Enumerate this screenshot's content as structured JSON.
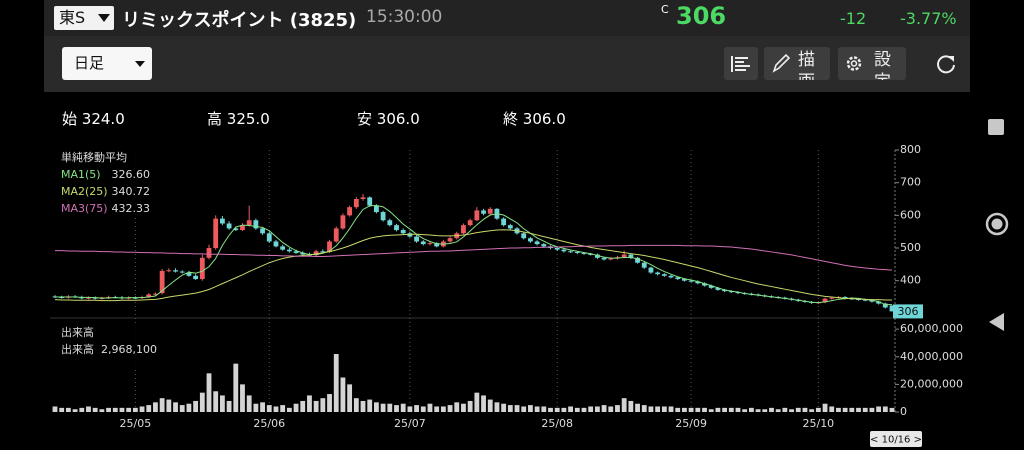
{
  "header": {
    "market": "東S",
    "name": "リミックスポイント (3825)",
    "time": "15:30:00",
    "price_flag": "C",
    "price": 306,
    "change": -12,
    "change_pct": "-3.77%"
  },
  "toolbar": {
    "period": "日足",
    "draw": "描画",
    "settings": "設定"
  },
  "ohlc": [
    {
      "label": "始",
      "value": "324.0"
    },
    {
      "label": "高",
      "value": "325.0"
    },
    {
      "label": "安",
      "value": "306.0"
    },
    {
      "label": "終",
      "value": "306.0"
    }
  ],
  "chart_data": {
    "type": "candlestick",
    "categories": [
      null,
      null,
      null,
      null,
      null,
      null,
      null,
      null,
      null,
      null,
      null,
      null,
      "25/05",
      null,
      null,
      null,
      null,
      null,
      null,
      null,
      null,
      null,
      null,
      null,
      null,
      null,
      null,
      null,
      null,
      null,
      null,
      null,
      "25/06",
      null,
      null,
      null,
      null,
      null,
      null,
      null,
      null,
      null,
      null,
      null,
      null,
      null,
      null,
      null,
      null,
      null,
      null,
      null,
      null,
      "25/07",
      null,
      null,
      null,
      null,
      null,
      null,
      null,
      null,
      null,
      null,
      null,
      null,
      null,
      null,
      null,
      null,
      null,
      null,
      null,
      null,
      null,
      "25/08",
      null,
      null,
      null,
      null,
      null,
      null,
      null,
      null,
      null,
      null,
      null,
      null,
      null,
      null,
      null,
      null,
      null,
      null,
      null,
      "25/09",
      null,
      null,
      null,
      null,
      null,
      null,
      null,
      null,
      null,
      null,
      null,
      null,
      null,
      null,
      null,
      null,
      null,
      null,
      "25/10",
      null,
      null,
      null,
      null,
      null,
      null,
      null,
      null,
      null,
      null,
      null
    ],
    "open": [
      352,
      350,
      348,
      352,
      350,
      346,
      348,
      345,
      347,
      350,
      349,
      346,
      348,
      347,
      350,
      358,
      362,
      430,
      432,
      428,
      425,
      415,
      405,
      470,
      500,
      590,
      575,
      560,
      555,
      570,
      585,
      560,
      545,
      520,
      505,
      495,
      490,
      485,
      480,
      478,
      490,
      488,
      520,
      560,
      600,
      625,
      650,
      655,
      630,
      610,
      585,
      570,
      555,
      545,
      535,
      520,
      512,
      515,
      505,
      520,
      530,
      545,
      570,
      585,
      615,
      605,
      620,
      590,
      570,
      560,
      545,
      530,
      520,
      512,
      505,
      500,
      495,
      490,
      488,
      485,
      482,
      480,
      470,
      465,
      468,
      472,
      480,
      470,
      455,
      440,
      425,
      420,
      415,
      410,
      405,
      400,
      398,
      392,
      385,
      378,
      372,
      368,
      365,
      362,
      360,
      358,
      355,
      352,
      350,
      348,
      345,
      342,
      338,
      335,
      332,
      334,
      345,
      348,
      350,
      346,
      344,
      342,
      340,
      336,
      330,
      324
    ],
    "high": [
      356,
      354,
      356,
      356,
      354,
      352,
      352,
      351,
      354,
      354,
      353,
      352,
      352,
      354,
      362,
      364,
      436,
      438,
      438,
      432,
      430,
      420,
      480,
      510,
      600,
      598,
      582,
      566,
      576,
      630,
      590,
      565,
      550,
      525,
      510,
      500,
      495,
      490,
      486,
      495,
      496,
      525,
      566,
      606,
      630,
      656,
      665,
      658,
      634,
      614,
      590,
      574,
      560,
      550,
      540,
      524,
      520,
      518,
      525,
      535,
      550,
      575,
      590,
      625,
      620,
      625,
      622,
      594,
      574,
      564,
      548,
      534,
      524,
      515,
      508,
      503,
      498,
      493,
      491,
      488,
      485,
      483,
      473,
      471,
      476,
      492,
      483,
      473,
      458,
      443,
      428,
      423,
      418,
      413,
      408,
      403,
      401,
      395,
      388,
      381,
      375,
      371,
      368,
      365,
      363,
      361,
      358,
      355,
      353,
      351,
      348,
      345,
      341,
      338,
      337,
      348,
      351,
      353,
      353,
      349,
      347,
      345,
      343,
      339,
      333,
      325
    ],
    "low": [
      347,
      345,
      345,
      347,
      343,
      343,
      342,
      342,
      344,
      346,
      343,
      343,
      344,
      344,
      347,
      355,
      358,
      426,
      425,
      422,
      412,
      402,
      400,
      465,
      495,
      570,
      556,
      552,
      552,
      566,
      556,
      540,
      516,
      502,
      492,
      486,
      482,
      476,
      474,
      475,
      484,
      485,
      516,
      556,
      596,
      620,
      645,
      626,
      606,
      581,
      566,
      551,
      542,
      532,
      516,
      508,
      508,
      502,
      502,
      516,
      526,
      542,
      566,
      582,
      600,
      602,
      586,
      566,
      556,
      541,
      526,
      516,
      508,
      501,
      496,
      491,
      486,
      485,
      481,
      479,
      477,
      466,
      462,
      462,
      465,
      469,
      466,
      452,
      436,
      421,
      416,
      412,
      407,
      402,
      397,
      395,
      389,
      382,
      375,
      369,
      365,
      362,
      359,
      357,
      355,
      352,
      349,
      347,
      345,
      342,
      339,
      335,
      332,
      329,
      329,
      331,
      342,
      345,
      343,
      341,
      339,
      337,
      333,
      327,
      315,
      306
    ],
    "close": [
      350,
      348,
      352,
      350,
      346,
      348,
      345,
      347,
      350,
      349,
      346,
      348,
      347,
      350,
      358,
      360,
      430,
      432,
      428,
      425,
      415,
      405,
      470,
      500,
      590,
      575,
      560,
      555,
      570,
      585,
      560,
      545,
      520,
      505,
      495,
      490,
      485,
      480,
      478,
      490,
      488,
      520,
      560,
      600,
      625,
      650,
      655,
      630,
      610,
      585,
      570,
      555,
      545,
      535,
      520,
      512,
      515,
      505,
      520,
      530,
      545,
      570,
      585,
      615,
      605,
      620,
      590,
      570,
      560,
      545,
      530,
      520,
      512,
      505,
      500,
      495,
      490,
      488,
      485,
      482,
      480,
      470,
      465,
      468,
      472,
      480,
      470,
      455,
      440,
      425,
      420,
      415,
      410,
      405,
      400,
      398,
      392,
      385,
      378,
      372,
      368,
      365,
      362,
      360,
      358,
      355,
      352,
      350,
      348,
      345,
      342,
      338,
      335,
      332,
      334,
      345,
      348,
      350,
      346,
      344,
      342,
      340,
      336,
      330,
      318,
      306
    ],
    "up_color": "#ee5b5f",
    "down_color": "#6fd6d8",
    "ylim": [
      295,
      800
    ],
    "yticks": [
      400,
      500,
      600,
      700,
      800
    ],
    "legend_title": "単純移動平均",
    "series": [
      {
        "name": "MA1(5)",
        "color": "#86e486",
        "legend_value": "326.60",
        "values": [
          350,
          350,
          350,
          350,
          349,
          349,
          348,
          347,
          347,
          348,
          347,
          348,
          348,
          348,
          350,
          353,
          369,
          386,
          402,
          417,
          426,
          423,
          429,
          443,
          468,
          508,
          539,
          564,
          570,
          569,
          566,
          563,
          553,
          535,
          517,
          503,
          492,
          485,
          480,
          480,
          484,
          491,
          507,
          531,
          559,
          591,
          618,
          629,
          630,
          626,
          612,
          593,
          573,
          558,
          542,
          529,
          520,
          513,
          512,
          514,
          519,
          534,
          552,
          571,
          588,
          601,
          605,
          601,
          589,
          577,
          559,
          545,
          531,
          521,
          511,
          504,
          499,
          494,
          490,
          486,
          483,
          477,
          472,
          469,
          469,
          471,
          471,
          467,
          459,
          449,
          438,
          428,
          420,
          412,
          406,
          402,
          397,
          391,
          385,
          378,
          372,
          368,
          365,
          361,
          358,
          356,
          353,
          351,
          348,
          346,
          343,
          340,
          337,
          334,
          333,
          335,
          339,
          343,
          345,
          347,
          346,
          343,
          340,
          336,
          327,
          326.6
        ]
      },
      {
        "name": "MA2(25)",
        "color": "#c9d86a",
        "legend_value": "340.72",
        "values": [
          342,
          341,
          341,
          340,
          340,
          340,
          340,
          339,
          339,
          339,
          340,
          340,
          340,
          341,
          342,
          343,
          346,
          350,
          353,
          356,
          359,
          362,
          367,
          373,
          382,
          391,
          400,
          409,
          418,
          428,
          437,
          446,
          455,
          462,
          468,
          472,
          475,
          477,
          479,
          482,
          485,
          489,
          494,
          500,
          507,
          515,
          523,
          530,
          534,
          537,
          539,
          540,
          541,
          542,
          542,
          541,
          540,
          538,
          537,
          537,
          538,
          540,
          543,
          547,
          550,
          553,
          555,
          556,
          555,
          553,
          549,
          545,
          540,
          535,
          530,
          525,
          520,
          515,
          510,
          506,
          502,
          498,
          495,
          492,
          489,
          486,
          483,
          480,
          477,
          473,
          469,
          465,
          460,
          455,
          450,
          445,
          440,
          434,
          428,
          422,
          416,
          410,
          405,
          400,
          395,
          390,
          386,
          382,
          378,
          374,
          370,
          366,
          362,
          358,
          355,
          352,
          350,
          348,
          346,
          345,
          344,
          343,
          342,
          342,
          341,
          340.72
        ]
      },
      {
        "name": "MA3(75)",
        "color": "#d070b4",
        "legend_value": "432.33",
        "values": [
          492,
          492,
          491,
          491,
          490,
          490,
          490,
          489,
          489,
          488,
          488,
          487,
          487,
          486,
          486,
          485,
          485,
          484,
          484,
          483,
          483,
          482,
          482,
          481,
          481,
          481,
          480,
          480,
          479,
          479,
          478,
          478,
          477,
          477,
          476,
          476,
          475,
          475,
          475,
          474,
          474,
          475,
          476,
          477,
          478,
          479,
          480,
          481,
          482,
          483,
          484,
          485,
          486,
          487,
          488,
          489,
          490,
          490,
          491,
          491,
          492,
          493,
          494,
          495,
          496,
          497,
          498,
          499,
          500,
          500,
          501,
          501,
          502,
          502,
          503,
          503,
          504,
          504,
          505,
          505,
          506,
          506,
          506,
          507,
          507,
          507,
          508,
          508,
          508,
          508,
          508,
          508,
          508,
          508,
          507,
          507,
          507,
          506,
          506,
          505,
          504,
          503,
          501,
          499,
          497,
          494,
          491,
          488,
          485,
          482,
          479,
          475,
          471,
          467,
          463,
          459,
          455,
          451,
          447,
          444,
          441,
          439,
          437,
          435,
          434,
          432.33
        ]
      }
    ],
    "volume": {
      "title": "出来高",
      "name": "出来高",
      "color": "#d4d4d4",
      "last_label": "2,968,100",
      "ylim": [
        0,
        63000000
      ],
      "yticks": [
        0,
        {
          "value": 20000000,
          "label": "20,000,000"
        },
        {
          "value": 40000000,
          "label": "40,000,000"
        },
        {
          "value": 60000000,
          "label": "60,000,000"
        }
      ],
      "values": [
        4000000.0,
        3000000.0,
        3000000.0,
        2000000.0,
        3000000.0,
        4000000.0,
        3000000.0,
        2000000.0,
        3000000.0,
        3000000.0,
        3000000.0,
        3000000.0,
        3000000.0,
        4000000.0,
        5000000.0,
        7000000.0,
        10000000.0,
        9000000.0,
        7000000.0,
        5000000.0,
        6000000.0,
        8000000.0,
        14000000.0,
        28000000.0,
        15000000.0,
        12000000.0,
        8000000.0,
        35000000.0,
        20000000.0,
        12000000.0,
        6000000.0,
        7000000.0,
        5000000.0,
        4000000.0,
        5000000.0,
        3000000.0,
        6000000.0,
        8000000.0,
        12000000.0,
        8000000.0,
        10000000.0,
        13000000.0,
        42000000.0,
        25000000.0,
        20000000.0,
        10000000.0,
        8000000.0,
        9000000.0,
        7000000.0,
        6000000.0,
        6000000.0,
        5000000.0,
        6000000.0,
        4000000.0,
        5000000.0,
        4000000.0,
        6000000.0,
        4000000.0,
        4000000.0,
        5000000.0,
        7000000.0,
        6000000.0,
        8000000.0,
        14000000.0,
        12000000.0,
        9000000.0,
        7000000.0,
        6000000.0,
        5000000.0,
        5000000.0,
        4000000.0,
        5000000.0,
        4000000.0,
        4000000.0,
        3000000.0,
        3000000.0,
        3000000.0,
        4000000.0,
        3000000.0,
        3000000.0,
        4000000.0,
        4000000.0,
        5000000.0,
        4000000.0,
        5000000.0,
        10000000.0,
        8000000.0,
        6000000.0,
        5000000.0,
        4000000.0,
        4000000.0,
        4000000.0,
        4000000.0,
        3000000.0,
        3000000.0,
        3000000.0,
        3000000.0,
        3000000.0,
        2000000.0,
        3000000.0,
        3000000.0,
        3000000.0,
        3000000.0,
        2000000.0,
        3000000.0,
        2000000.0,
        2000000.0,
        3000000.0,
        2000000.0,
        3000000.0,
        2000000.0,
        3000000.0,
        3000000.0,
        2000000.0,
        3000000.0,
        6000000.0,
        4000000.0,
        3000000.0,
        3000000.0,
        3000000.0,
        3000000.0,
        3000000.0,
        3000000.0,
        4000000.0,
        4000000.0,
        2968100
      ]
    },
    "cursor_label": "< 10/16 >"
  }
}
